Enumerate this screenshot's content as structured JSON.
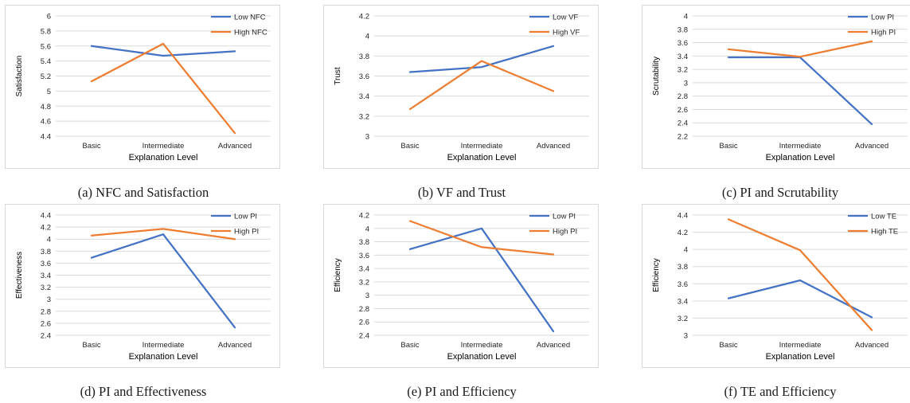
{
  "colors": {
    "low": "#4472c4",
    "high": "#ed7d31",
    "grid": "#d9d9d9",
    "text": "#262626"
  },
  "chart_data": [
    {
      "type": "line",
      "caption": "(a) NFC and Satisfaction",
      "categories": [
        "Basic",
        "Intermediate",
        "Advanced"
      ],
      "xlabel": "Explanation Level",
      "ylabel": "Satisfaction",
      "ylim": [
        4.4,
        6
      ],
      "yticks": [
        "4.4",
        "4.6",
        "4.8",
        "5",
        "5.2",
        "5.4",
        "5.6",
        "5.8",
        "6"
      ],
      "series": [
        {
          "name": "Low NFC",
          "color": "#4472c4",
          "values": [
            5.6,
            5.47,
            5.53
          ]
        },
        {
          "name": "High NFC",
          "color": "#ed7d31",
          "values": [
            5.13,
            5.63,
            4.44
          ]
        }
      ],
      "legend": "top-right",
      "grid": true
    },
    {
      "type": "line",
      "caption": "(b) VF and Trust",
      "categories": [
        "Basic",
        "Intermediate",
        "Advanced"
      ],
      "xlabel": "Explanation Level",
      "ylabel": "Trust",
      "ylim": [
        3,
        4.2
      ],
      "yticks": [
        "3",
        "3.2",
        "3.4",
        "3.6",
        "3.8",
        "4",
        "4.2"
      ],
      "series": [
        {
          "name": "Low VF",
          "color": "#4472c4",
          "values": [
            3.64,
            3.69,
            3.9
          ]
        },
        {
          "name": "High VF",
          "color": "#ed7d31",
          "values": [
            3.27,
            3.75,
            3.45
          ]
        }
      ],
      "legend": "top-right",
      "grid": true
    },
    {
      "type": "line",
      "caption": "(c) PI and Scrutability",
      "categories": [
        "Basic",
        "Intermediate",
        "Advanced"
      ],
      "xlabel": "Explanation Level",
      "ylabel": "Scrutability",
      "ylim": [
        2.2,
        4
      ],
      "yticks": [
        "2.2",
        "2.4",
        "2.6",
        "2.8",
        "3",
        "3.2",
        "3.4",
        "3.6",
        "3.8",
        "4"
      ],
      "series": [
        {
          "name": "Low PI",
          "color": "#4472c4",
          "values": [
            3.38,
            3.38,
            2.38
          ]
        },
        {
          "name": "High PI",
          "color": "#ed7d31",
          "values": [
            3.5,
            3.39,
            3.62
          ]
        }
      ],
      "legend": "top-right",
      "grid": true
    },
    {
      "type": "line",
      "caption": "(d) PI and Effectiveness",
      "categories": [
        "Basic",
        "Intermediate",
        "Advanced"
      ],
      "xlabel": "Explanation Level",
      "ylabel": "Effectiveness",
      "ylim": [
        2.4,
        4.4
      ],
      "yticks": [
        "2.4",
        "2.6",
        "2.8",
        "3",
        "3.2",
        "3.4",
        "3.6",
        "3.8",
        "4",
        "4.2",
        "4.4"
      ],
      "series": [
        {
          "name": "Low PI",
          "color": "#4472c4",
          "values": [
            3.69,
            4.08,
            2.53
          ]
        },
        {
          "name": "High PI",
          "color": "#ed7d31",
          "values": [
            4.06,
            4.17,
            4.0
          ]
        }
      ],
      "legend": "top-right",
      "grid": true
    },
    {
      "type": "line",
      "caption": "(e) PI and Efficiency",
      "categories": [
        "Basic",
        "Intermediate",
        "Advanced"
      ],
      "xlabel": "Explanation Level",
      "ylabel": "Efficiency",
      "ylim": [
        2.4,
        4.2
      ],
      "yticks": [
        "2.4",
        "2.6",
        "2.8",
        "3",
        "3.2",
        "3.4",
        "3.6",
        "3.8",
        "4",
        "4.2"
      ],
      "series": [
        {
          "name": "Low PI",
          "color": "#4472c4",
          "values": [
            3.69,
            4.0,
            2.46
          ]
        },
        {
          "name": "High PI",
          "color": "#ed7d31",
          "values": [
            4.11,
            3.72,
            3.61
          ]
        }
      ],
      "legend": "top-right",
      "grid": true
    },
    {
      "type": "line",
      "caption": "(f) TE and Efficiency",
      "categories": [
        "Basic",
        "Intermediate",
        "Advanced"
      ],
      "xlabel": "Explanation Level",
      "ylabel": "Efficiency",
      "ylim": [
        3,
        4.4
      ],
      "yticks": [
        "3",
        "3.2",
        "3.4",
        "3.6",
        "3.8",
        "4",
        "4.2",
        "4.4"
      ],
      "series": [
        {
          "name": "Low TE",
          "color": "#4472c4",
          "values": [
            3.43,
            3.64,
            3.21
          ]
        },
        {
          "name": "High TE",
          "color": "#ed7d31",
          "values": [
            4.35,
            3.99,
            3.06
          ]
        }
      ],
      "legend": "top-right",
      "grid": true
    }
  ]
}
